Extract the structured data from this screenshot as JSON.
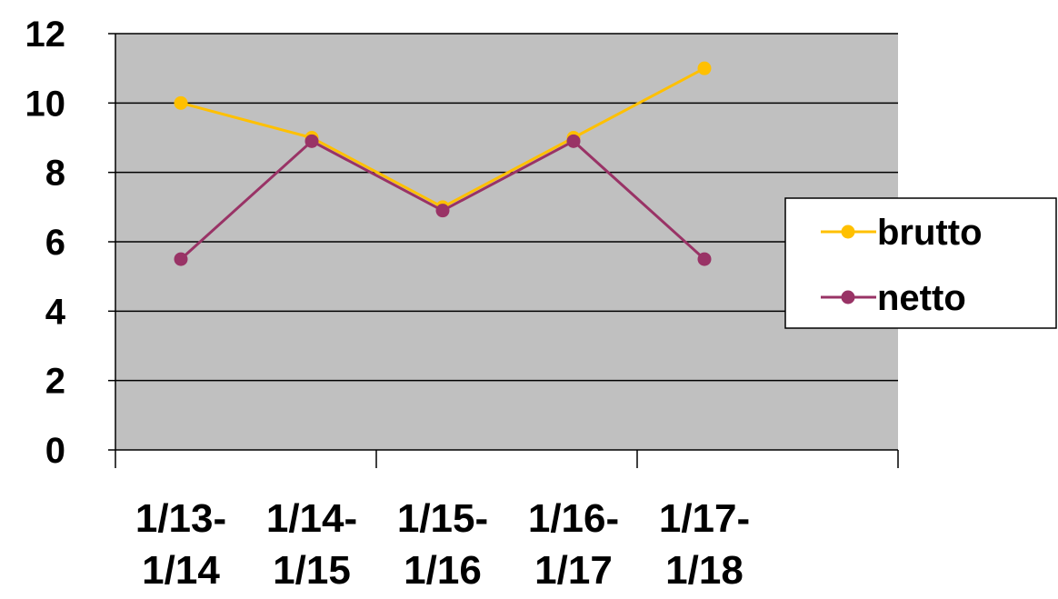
{
  "chart_data": {
    "type": "line",
    "categories": [
      [
        "1/13-",
        "1/14"
      ],
      [
        "1/14-",
        "1/15"
      ],
      [
        "1/15-",
        "1/16"
      ],
      [
        "1/16-",
        "1/17"
      ],
      [
        "1/17-",
        "1/18"
      ]
    ],
    "series": [
      {
        "name": "brutto",
        "color": "#FFC000",
        "values": [
          10,
          9,
          7,
          9,
          11
        ]
      },
      {
        "name": "netto",
        "color": "#993366",
        "values": [
          5.5,
          8.9,
          6.9,
          8.9,
          5.5
        ]
      }
    ],
    "ylim": [
      0,
      12
    ],
    "yticks": [
      0,
      2,
      4,
      6,
      8,
      10,
      12
    ],
    "grid": true,
    "plot_background": "#C0C0C0",
    "legend": "right"
  }
}
